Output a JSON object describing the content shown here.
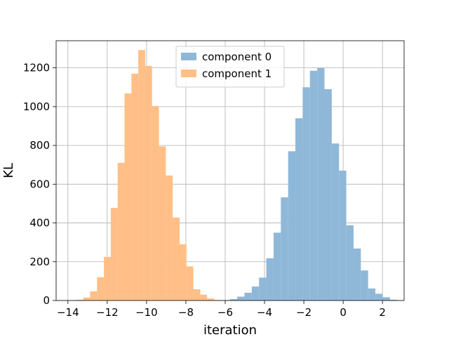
{
  "chart_data": {
    "type": "histogram",
    "xlabel": "iteration",
    "ylabel": "KL",
    "xlim": [
      -14.6,
      3.1
    ],
    "ylim": [
      0,
      1340
    ],
    "xticks": [
      -14,
      -12,
      -10,
      -8,
      -6,
      -4,
      -2,
      0,
      2
    ],
    "yticks": [
      0,
      200,
      400,
      600,
      800,
      1000,
      1200
    ],
    "grid": true,
    "legend_position": "top-center",
    "series": [
      {
        "name": "component 0",
        "color": "#8fb8d8",
        "bins": [
          {
            "x0": -6.13,
            "x1": -5.76,
            "y": 2
          },
          {
            "x0": -5.76,
            "x1": -5.39,
            "y": 7
          },
          {
            "x0": -5.39,
            "x1": -5.02,
            "y": 20
          },
          {
            "x0": -5.02,
            "x1": -4.65,
            "y": 40
          },
          {
            "x0": -4.65,
            "x1": -4.28,
            "y": 72
          },
          {
            "x0": -4.28,
            "x1": -3.91,
            "y": 118
          },
          {
            "x0": -3.91,
            "x1": -3.54,
            "y": 218
          },
          {
            "x0": -3.54,
            "x1": -3.17,
            "y": 350
          },
          {
            "x0": -3.17,
            "x1": -2.8,
            "y": 532
          },
          {
            "x0": -2.8,
            "x1": -2.43,
            "y": 770
          },
          {
            "x0": -2.43,
            "x1": -2.06,
            "y": 940
          },
          {
            "x0": -2.06,
            "x1": -1.69,
            "y": 1100
          },
          {
            "x0": -1.69,
            "x1": -1.32,
            "y": 1185
          },
          {
            "x0": -1.32,
            "x1": -0.95,
            "y": 1200
          },
          {
            "x0": -0.95,
            "x1": -0.58,
            "y": 1090
          },
          {
            "x0": -0.58,
            "x1": -0.21,
            "y": 810
          },
          {
            "x0": -0.21,
            "x1": 0.16,
            "y": 670
          },
          {
            "x0": 0.16,
            "x1": 0.53,
            "y": 388
          },
          {
            "x0": 0.53,
            "x1": 0.9,
            "y": 268
          },
          {
            "x0": 0.9,
            "x1": 1.27,
            "y": 155
          },
          {
            "x0": 1.27,
            "x1": 1.64,
            "y": 62
          },
          {
            "x0": 1.64,
            "x1": 2.01,
            "y": 35
          },
          {
            "x0": 2.01,
            "x1": 2.38,
            "y": 17
          },
          {
            "x0": 2.38,
            "x1": 2.75,
            "y": 4
          }
        ]
      },
      {
        "name": "component 1",
        "color": "#ffbf86",
        "bins": [
          {
            "x0": -13.57,
            "x1": -13.22,
            "y": 4
          },
          {
            "x0": -13.22,
            "x1": -12.87,
            "y": 15
          },
          {
            "x0": -12.87,
            "x1": -12.52,
            "y": 47
          },
          {
            "x0": -12.52,
            "x1": -12.17,
            "y": 120
          },
          {
            "x0": -12.17,
            "x1": -11.82,
            "y": 225
          },
          {
            "x0": -11.82,
            "x1": -11.47,
            "y": 478
          },
          {
            "x0": -11.47,
            "x1": -11.12,
            "y": 710
          },
          {
            "x0": -11.12,
            "x1": -10.77,
            "y": 1068
          },
          {
            "x0": -10.77,
            "x1": -10.42,
            "y": 1170
          },
          {
            "x0": -10.42,
            "x1": -10.07,
            "y": 1292
          },
          {
            "x0": -10.07,
            "x1": -9.72,
            "y": 1210
          },
          {
            "x0": -9.72,
            "x1": -9.37,
            "y": 1003
          },
          {
            "x0": -9.37,
            "x1": -9.02,
            "y": 795
          },
          {
            "x0": -9.02,
            "x1": -8.67,
            "y": 645
          },
          {
            "x0": -8.67,
            "x1": -8.32,
            "y": 428
          },
          {
            "x0": -8.32,
            "x1": -7.97,
            "y": 290
          },
          {
            "x0": -7.97,
            "x1": -7.62,
            "y": 176
          },
          {
            "x0": -7.62,
            "x1": -7.27,
            "y": 58
          },
          {
            "x0": -7.27,
            "x1": -6.92,
            "y": 30
          },
          {
            "x0": -6.92,
            "x1": -6.57,
            "y": 10
          },
          {
            "x0": -6.57,
            "x1": -6.22,
            "y": 3
          }
        ]
      }
    ]
  }
}
